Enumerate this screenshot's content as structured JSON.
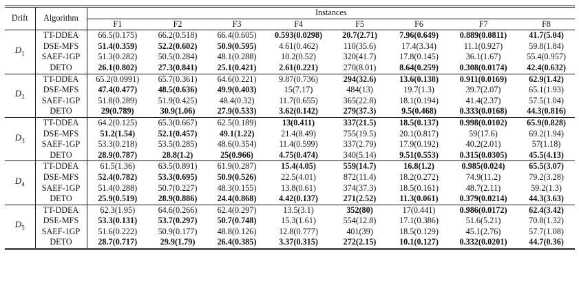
{
  "headers": {
    "drift": "Drift",
    "algorithm": "Algorithm",
    "instances": "Instances",
    "functions": [
      "F1",
      "F2",
      "F3",
      "F4",
      "F5",
      "F6",
      "F7",
      "F8"
    ]
  },
  "groups": [
    {
      "drift": "D",
      "sub": "1",
      "rows": [
        {
          "alg": "TT-DDEA",
          "cells": [
            {
              "v": "66.5(0.175)",
              "b": false
            },
            {
              "v": "66.2(0.518)",
              "b": false
            },
            {
              "v": "66.4(0.605)",
              "b": false
            },
            {
              "v": "0.593(0.0298)",
              "b": true
            },
            {
              "v": "20.7(2.71)",
              "b": true
            },
            {
              "v": "7.96(0.649)",
              "b": true
            },
            {
              "v": "0.889(0.0811)",
              "b": true
            },
            {
              "v": "41.7(5.04)",
              "b": true
            }
          ]
        },
        {
          "alg": "DSE-MFS",
          "cells": [
            {
              "v": "51.4(0.359)",
              "b": true
            },
            {
              "v": "52.2(0.602)",
              "b": true
            },
            {
              "v": "50.9(0.595)",
              "b": true
            },
            {
              "v": "4.61(0.462)",
              "b": false
            },
            {
              "v": "110(35.6)",
              "b": false
            },
            {
              "v": "17.4(3.34)",
              "b": false
            },
            {
              "v": "11.1(0.927)",
              "b": false
            },
            {
              "v": "59.8(1.84)",
              "b": false
            }
          ]
        },
        {
          "alg": "SAEF-1GP",
          "cells": [
            {
              "v": "51.3(0.282)",
              "b": false
            },
            {
              "v": "50.5(0.284)",
              "b": false
            },
            {
              "v": "48.1(0.288)",
              "b": false
            },
            {
              "v": "10.2(0.52)",
              "b": false
            },
            {
              "v": "320(41.7)",
              "b": false
            },
            {
              "v": "17.8(0.145)",
              "b": false
            },
            {
              "v": "36.1(1.67)",
              "b": false
            },
            {
              "v": "55.4(0.957)",
              "b": false
            }
          ]
        },
        {
          "alg": "DETO",
          "cells": [
            {
              "v": "26.1(0.802)",
              "b": true
            },
            {
              "v": "27.3(0.841)",
              "b": true
            },
            {
              "v": "25.1(0.421)",
              "b": true
            },
            {
              "v": "2.61(0.221)",
              "b": true
            },
            {
              "v": "270(8.01)",
              "b": false
            },
            {
              "v": "8.64(0.259)",
              "b": true
            },
            {
              "v": "0.308(0.0174)",
              "b": true
            },
            {
              "v": "42.4(0.632)",
              "b": true
            }
          ]
        }
      ]
    },
    {
      "drift": "D",
      "sub": "2",
      "rows": [
        {
          "alg": "TT-DDEA",
          "cells": [
            {
              "v": "65.2(0.0991)",
              "b": false
            },
            {
              "v": "65.7(0.361)",
              "b": false
            },
            {
              "v": "64.6(0.221)",
              "b": false
            },
            {
              "v": "9.87(0.736)",
              "b": false
            },
            {
              "v": "294(32.6)",
              "b": true
            },
            {
              "v": "13.6(0.138)",
              "b": true
            },
            {
              "v": "0.911(0.0169)",
              "b": true
            },
            {
              "v": "62.9(1.42)",
              "b": true
            }
          ]
        },
        {
          "alg": "DSE-MFS",
          "cells": [
            {
              "v": "47.4(0.477)",
              "b": true
            },
            {
              "v": "48.5(0.636)",
              "b": true
            },
            {
              "v": "49.9(0.403)",
              "b": true
            },
            {
              "v": "15(7.17)",
              "b": false
            },
            {
              "v": "484(13)",
              "b": false
            },
            {
              "v": "19.7(1.3)",
              "b": false
            },
            {
              "v": "39.7(2.07)",
              "b": false
            },
            {
              "v": "65.1(1.93)",
              "b": false
            }
          ]
        },
        {
          "alg": "SAEF-1GP",
          "cells": [
            {
              "v": "51.8(0.289)",
              "b": false
            },
            {
              "v": "51.9(0.425)",
              "b": false
            },
            {
              "v": "48.4(0.32)",
              "b": false
            },
            {
              "v": "11.7(0.655)",
              "b": false
            },
            {
              "v": "365(22.8)",
              "b": false
            },
            {
              "v": "18.1(0.194)",
              "b": false
            },
            {
              "v": "41.4(2.37)",
              "b": false
            },
            {
              "v": "57.5(1.04)",
              "b": false
            }
          ]
        },
        {
          "alg": "DETO",
          "cells": [
            {
              "v": "29(0.789)",
              "b": true
            },
            {
              "v": "30.9(1.06)",
              "b": true
            },
            {
              "v": "27.9(0.533)",
              "b": true
            },
            {
              "v": "3.62(0.142)",
              "b": true
            },
            {
              "v": "279(37.3)",
              "b": true
            },
            {
              "v": "9.5(0.468)",
              "b": true
            },
            {
              "v": "0.333(0.0168)",
              "b": true
            },
            {
              "v": "44.3(0.816)",
              "b": true
            }
          ]
        }
      ]
    },
    {
      "drift": "D",
      "sub": "3",
      "rows": [
        {
          "alg": "TT-DDEA",
          "cells": [
            {
              "v": "64.2(0.125)",
              "b": false
            },
            {
              "v": "65.3(0.667)",
              "b": false
            },
            {
              "v": "62.5(0.189)",
              "b": false
            },
            {
              "v": "13(0.411)",
              "b": true
            },
            {
              "v": "337(21.5)",
              "b": true
            },
            {
              "v": "18.5(0.137)",
              "b": true
            },
            {
              "v": "0.998(0.0102)",
              "b": true
            },
            {
              "v": "65.9(0.828)",
              "b": true
            }
          ]
        },
        {
          "alg": "DSE-MFS",
          "cells": [
            {
              "v": "51.2(1.54)",
              "b": true
            },
            {
              "v": "52.1(0.457)",
              "b": true
            },
            {
              "v": "49.1(1.22)",
              "b": true
            },
            {
              "v": "21.4(8.49)",
              "b": false
            },
            {
              "v": "755(19.5)",
              "b": false
            },
            {
              "v": "20.1(0.817)",
              "b": false
            },
            {
              "v": "59(17.6)",
              "b": false
            },
            {
              "v": "69.2(1.94)",
              "b": false
            }
          ]
        },
        {
          "alg": "SAEF-1GP",
          "cells": [
            {
              "v": "53.3(0.218)",
              "b": false
            },
            {
              "v": "53.5(0.285)",
              "b": false
            },
            {
              "v": "48.6(0.354)",
              "b": false
            },
            {
              "v": "11.4(0.599)",
              "b": false
            },
            {
              "v": "337(2.79)",
              "b": false
            },
            {
              "v": "17.9(0.192)",
              "b": false
            },
            {
              "v": "40.2(2.01)",
              "b": false
            },
            {
              "v": "57(1.18)",
              "b": false
            }
          ]
        },
        {
          "alg": "DETO",
          "cells": [
            {
              "v": "28.9(0.787)",
              "b": true
            },
            {
              "v": "28.8(1.2)",
              "b": true
            },
            {
              "v": "25(0.966)",
              "b": true
            },
            {
              "v": "4.75(0.474)",
              "b": true
            },
            {
              "v": "340(5.14)",
              "b": false
            },
            {
              "v": "9.51(0.553)",
              "b": true
            },
            {
              "v": "0.315(0.0305)",
              "b": true
            },
            {
              "v": "45.5(4.13)",
              "b": true
            }
          ]
        }
      ]
    },
    {
      "drift": "D",
      "sub": "4",
      "rows": [
        {
          "alg": "TT-DDEA",
          "cells": [
            {
              "v": "61.5(1.36)",
              "b": false
            },
            {
              "v": "63.5(0.891)",
              "b": false
            },
            {
              "v": "61.9(0.287)",
              "b": false
            },
            {
              "v": "15.4(4.05)",
              "b": true
            },
            {
              "v": "559(14.7)",
              "b": true
            },
            {
              "v": "16.8(1.2)",
              "b": true
            },
            {
              "v": "0.985(0.024)",
              "b": true
            },
            {
              "v": "65.5(3.07)",
              "b": true
            }
          ]
        },
        {
          "alg": "DSE-MFS",
          "cells": [
            {
              "v": "52.4(0.782)",
              "b": true
            },
            {
              "v": "53.3(0.695)",
              "b": true
            },
            {
              "v": "50.9(0.526)",
              "b": true
            },
            {
              "v": "22.5(4.01)",
              "b": false
            },
            {
              "v": "872(11.4)",
              "b": false
            },
            {
              "v": "18.2(0.272)",
              "b": false
            },
            {
              "v": "74.9(11.2)",
              "b": false
            },
            {
              "v": "79.2(3.28)",
              "b": false
            }
          ]
        },
        {
          "alg": "SAEF-1GP",
          "cells": [
            {
              "v": "51.4(0.288)",
              "b": false
            },
            {
              "v": "50.7(0.227)",
              "b": false
            },
            {
              "v": "48.3(0.155)",
              "b": false
            },
            {
              "v": "13.8(0.61)",
              "b": false
            },
            {
              "v": "374(37.3)",
              "b": false
            },
            {
              "v": "18.5(0.161)",
              "b": false
            },
            {
              "v": "48.7(2.11)",
              "b": false
            },
            {
              "v": "59.2(1.3)",
              "b": false
            }
          ]
        },
        {
          "alg": "DETO",
          "cells": [
            {
              "v": "25.9(0.519)",
              "b": true
            },
            {
              "v": "28.9(0.886)",
              "b": true
            },
            {
              "v": "24.4(0.868)",
              "b": true
            },
            {
              "v": "4.42(0.137)",
              "b": true
            },
            {
              "v": "271(2.52)",
              "b": true
            },
            {
              "v": "11.3(0.061)",
              "b": true
            },
            {
              "v": "0.379(0.0214)",
              "b": true
            },
            {
              "v": "44.3(3.63)",
              "b": true
            }
          ]
        }
      ]
    },
    {
      "drift": "D",
      "sub": "5",
      "rows": [
        {
          "alg": "TT-DDEA",
          "cells": [
            {
              "v": "62.3(1.95)",
              "b": false
            },
            {
              "v": "64.6(0.266)",
              "b": false
            },
            {
              "v": "62.4(0.297)",
              "b": false
            },
            {
              "v": "13.5(3.1)",
              "b": false
            },
            {
              "v": "352(80)",
              "b": true
            },
            {
              "v": "17(0.441)",
              "b": false
            },
            {
              "v": "0.986(0.0172)",
              "b": true
            },
            {
              "v": "62.4(3.42)",
              "b": true
            }
          ]
        },
        {
          "alg": "DSE-MFS",
          "cells": [
            {
              "v": "53.3(0.131)",
              "b": true
            },
            {
              "v": "53.7(0.297)",
              "b": true
            },
            {
              "v": "50.7(0.748)",
              "b": true
            },
            {
              "v": "15.3(1.61)",
              "b": false
            },
            {
              "v": "554(12.8)",
              "b": false
            },
            {
              "v": "17.1(0.386)",
              "b": false
            },
            {
              "v": "51.6(5.21)",
              "b": false
            },
            {
              "v": "70.8(1.32)",
              "b": false
            }
          ]
        },
        {
          "alg": "SAEF-1GP",
          "cells": [
            {
              "v": "51.6(0.222)",
              "b": false
            },
            {
              "v": "50.9(0.177)",
              "b": false
            },
            {
              "v": "48.8(0.126)",
              "b": false
            },
            {
              "v": "12.8(0.777)",
              "b": false
            },
            {
              "v": "401(39)",
              "b": false
            },
            {
              "v": "18.5(0.129)",
              "b": false
            },
            {
              "v": "45.1(2.76)",
              "b": false
            },
            {
              "v": "57.7(1.08)",
              "b": false
            }
          ]
        },
        {
          "alg": "DETO",
          "cells": [
            {
              "v": "28.7(0.717)",
              "b": true
            },
            {
              "v": "29.9(1.79)",
              "b": true
            },
            {
              "v": "26.4(0.385)",
              "b": true
            },
            {
              "v": "3.37(0.315)",
              "b": true
            },
            {
              "v": "272(2.15)",
              "b": true
            },
            {
              "v": "10.1(0.127)",
              "b": true
            },
            {
              "v": "0.332(0.0201)",
              "b": true
            },
            {
              "v": "44.7(0.36)",
              "b": true
            }
          ]
        }
      ]
    }
  ]
}
